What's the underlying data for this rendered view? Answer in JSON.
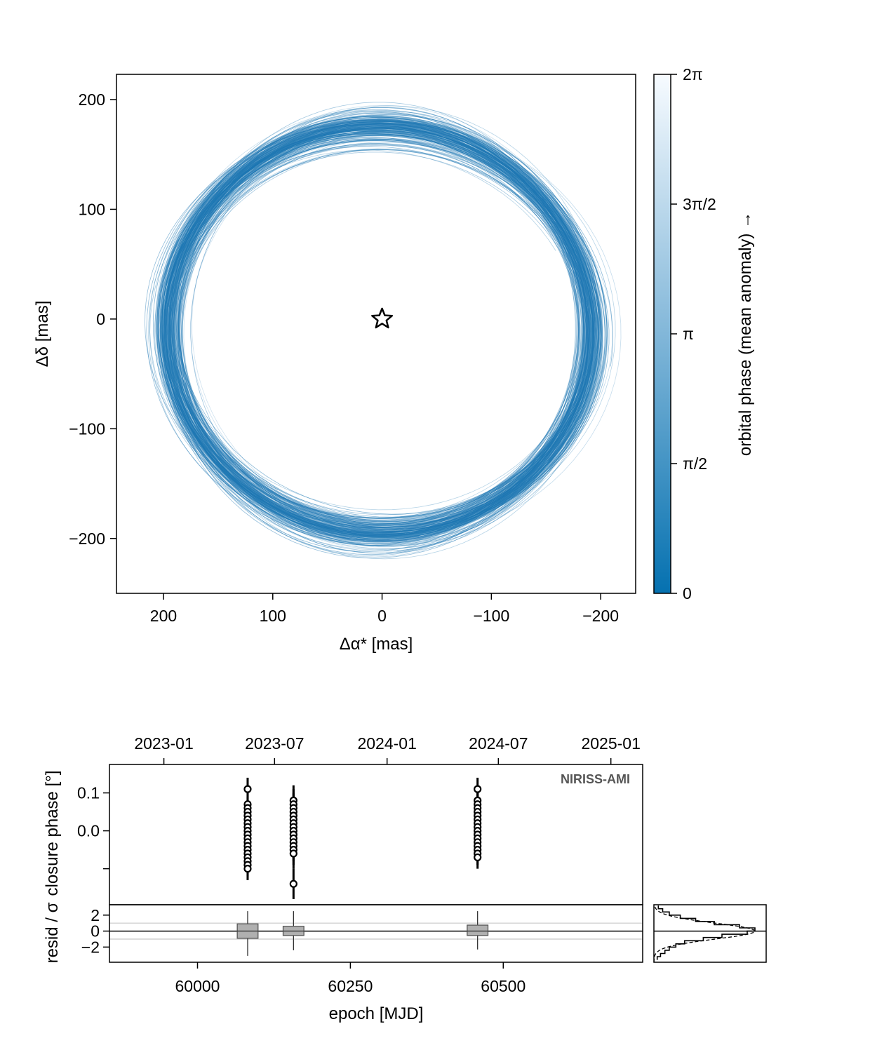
{
  "chart_data": [
    {
      "type": "line",
      "description_kind": "orbit-posterior-draws",
      "xlabel": "Δα* [mas]",
      "ylabel": "Δδ [mas]",
      "xlim": [
        243,
        -232
      ],
      "ylim": [
        -250,
        223
      ],
      "x_ticks": [
        200,
        100,
        0,
        -100,
        -200
      ],
      "x_tick_labels": [
        "200",
        "100",
        "0",
        "−100",
        "−200"
      ],
      "y_ticks": [
        200,
        100,
        0,
        -100,
        -200
      ],
      "y_tick_labels": [
        "200",
        "100",
        "0",
        "−100",
        "−200"
      ],
      "grid": false,
      "line_color": "#1f78b4",
      "n_orbits": 230,
      "orbit_mean": {
        "cx": 2,
        "cy": -10,
        "a": 194,
        "b": 185,
        "tilt_deg": 6
      },
      "orbit_spread": {
        "cx_sd": 4,
        "cy_sd": 4,
        "a_sd": 6,
        "b_sd": 7,
        "tilt_sd_deg": 4
      },
      "star": {
        "x": 0,
        "y": 0,
        "marker": "star"
      },
      "colorbar": {
        "label": "orbital phase (mean anomaly)  →",
        "range": [
          0,
          6.2832
        ],
        "ticks": [
          0,
          1.5708,
          3.1416,
          4.7124,
          6.2832
        ],
        "tick_labels": [
          "0",
          "π/2",
          "π",
          "3π/2",
          "2π"
        ],
        "color_low": "#0571b0",
        "color_high": "#f7fbff"
      }
    },
    {
      "type": "scatter",
      "instrument_label": "NIRISS-AMI",
      "ylabel": "closure phase [°]",
      "top_axis_tick_labels": [
        "2023-01",
        "2023-07",
        "2024-01",
        "2024-07",
        "2025-01"
      ],
      "top_axis_mjd": [
        59945,
        60126,
        60310,
        60492,
        60676
      ],
      "xlim": [
        59856,
        60728
      ],
      "ylim": [
        -0.195,
        0.175
      ],
      "y_ticks": [
        0.1,
        0.0,
        -0.1
      ],
      "y_tick_labels": [
        "0.1",
        "0.0",
        ""
      ],
      "epochs": [
        {
          "mjd": 60082,
          "values": [
            0.11,
            0.07,
            0.06,
            0.05,
            0.04,
            0.03,
            0.02,
            0.01,
            0.0,
            -0.01,
            -0.02,
            -0.03,
            -0.04,
            -0.05,
            -0.06,
            -0.07,
            -0.08,
            -0.09,
            -0.1
          ],
          "error": 0.03
        },
        {
          "mjd": 60157,
          "values": [
            0.08,
            0.07,
            0.06,
            0.05,
            0.04,
            0.03,
            0.02,
            0.01,
            0.0,
            -0.01,
            -0.02,
            -0.03,
            -0.04,
            -0.05,
            -0.06,
            -0.14
          ],
          "error": 0.04
        },
        {
          "mjd": 60458,
          "values": [
            0.11,
            0.08,
            0.07,
            0.06,
            0.05,
            0.04,
            0.03,
            0.02,
            0.01,
            0.0,
            -0.01,
            -0.02,
            -0.03,
            -0.04,
            -0.05,
            -0.06,
            -0.07
          ],
          "error": 0.03
        }
      ],
      "marker_face": "#ffffff",
      "marker_edge": "#000000"
    },
    {
      "type": "box",
      "ylabel": "resid / σ",
      "xlabel": "epoch [MJD]",
      "xlim": [
        59856,
        60728
      ],
      "ylim": [
        -3.9,
        3.3
      ],
      "x_ticks": [
        60000,
        60250,
        60500
      ],
      "x_tick_labels": [
        "60000",
        "60250",
        "60500"
      ],
      "y_ticks": [
        2,
        0,
        -2
      ],
      "y_tick_labels": [
        "2",
        "0",
        "−2"
      ],
      "reference_lines": [
        1,
        -1
      ],
      "boxes": [
        {
          "mjd": 60082,
          "q1": -0.9,
          "q3": 0.9,
          "median": 0.0,
          "whisker_low": -3.1,
          "whisker_high": 2.5,
          "width_mjd": 34
        },
        {
          "mjd": 60157,
          "q1": -0.55,
          "q3": 0.6,
          "median": 0.0,
          "whisker_low": -2.4,
          "whisker_high": 2.5,
          "width_mjd": 34
        },
        {
          "mjd": 60458,
          "q1": -0.55,
          "q3": 0.75,
          "median": 0.0,
          "whisker_low": -2.3,
          "whisker_high": 2.5,
          "width_mjd": 34
        }
      ],
      "box_fill": "#b0b0b0"
    },
    {
      "type": "histogram",
      "orientation": "horizontal",
      "ylim": [
        -3.9,
        3.3
      ],
      "bin_edges": [
        -3.6,
        -3.2,
        -2.8,
        -2.4,
        -2.0,
        -1.6,
        -1.2,
        -0.8,
        -0.4,
        0.0,
        0.4,
        0.8,
        1.2,
        1.6,
        2.0,
        2.4,
        2.8,
        3.2
      ],
      "density": [
        0.03,
        0.06,
        0.1,
        0.14,
        0.2,
        0.28,
        0.45,
        0.62,
        0.85,
        0.92,
        0.78,
        0.55,
        0.38,
        0.24,
        0.14,
        0.08,
        0.04
      ],
      "reference_density": "normal"
    }
  ]
}
